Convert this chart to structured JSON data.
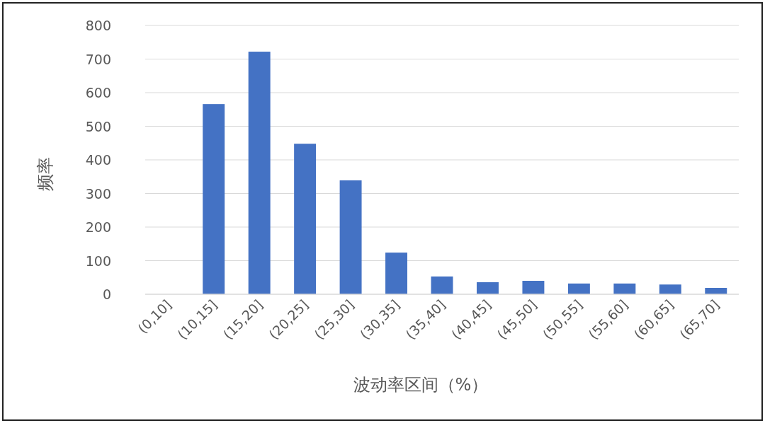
{
  "chart_data": {
    "type": "bar",
    "xlabel": "波动率区间（%）",
    "ylabel": "频率",
    "categories": [
      "(0,10]",
      "(10,15]",
      "(15,20]",
      "(20,25]",
      "(25,30]",
      "(30,35]",
      "(35,40]",
      "(40,45]",
      "(45,50]",
      "(50,55]",
      "(55,60]",
      "(60,65]",
      "(65,70]"
    ],
    "values": [
      0,
      566,
      722,
      448,
      339,
      124,
      53,
      36,
      40,
      32,
      32,
      29,
      19
    ],
    "color": "#4472c4",
    "ylim": [
      0,
      800
    ],
    "yticks": [
      0,
      100,
      200,
      300,
      400,
      500,
      600,
      700,
      800
    ],
    "grid": "y"
  }
}
